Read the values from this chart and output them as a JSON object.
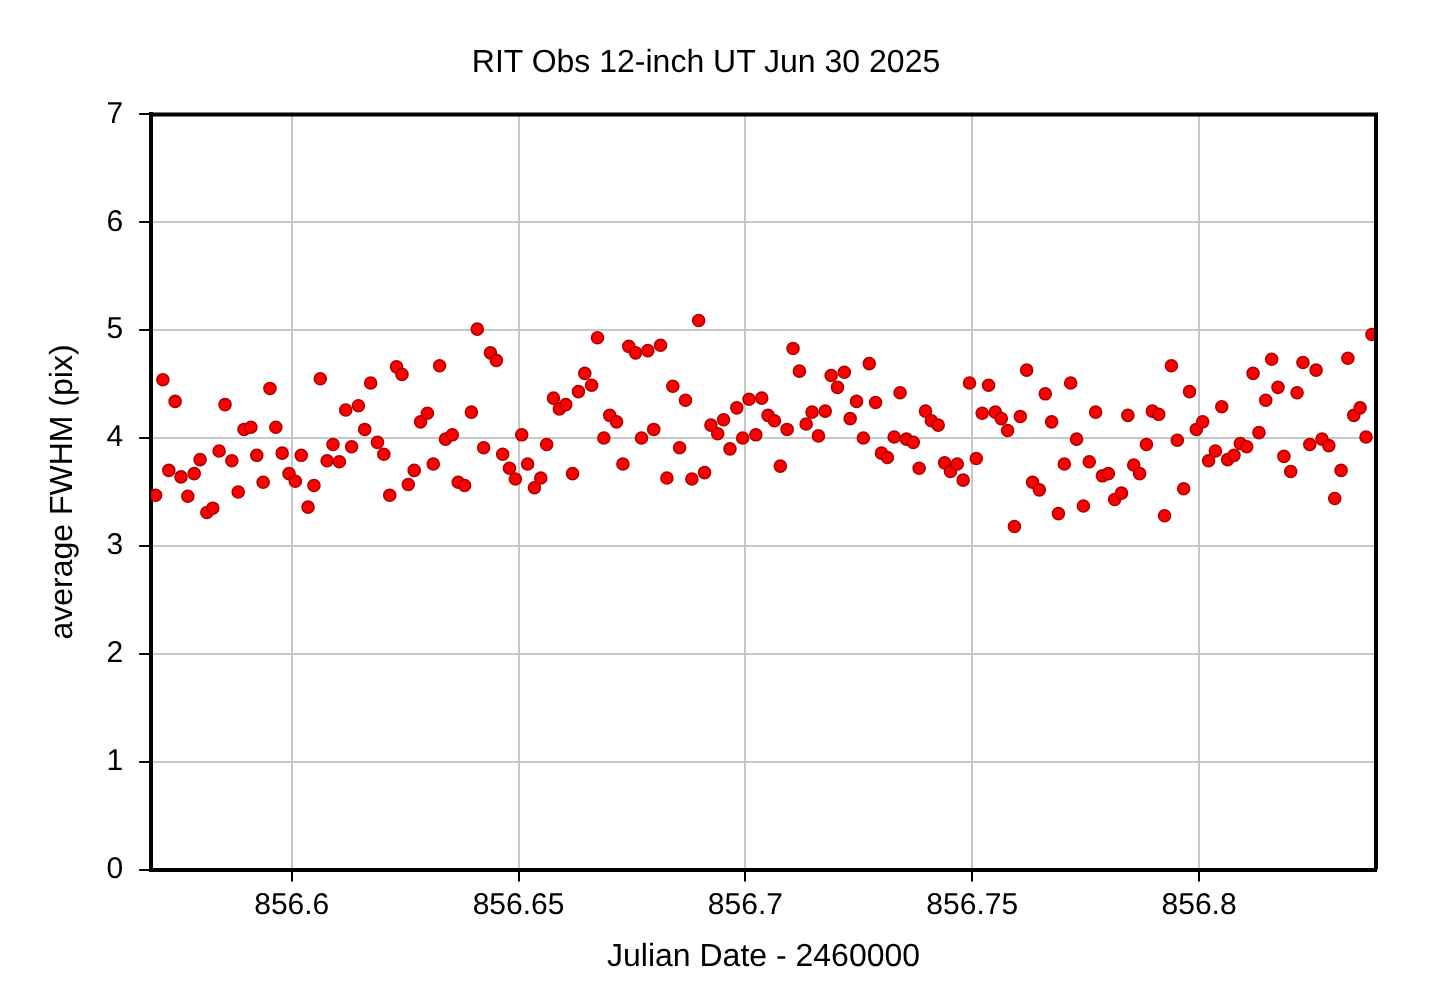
{
  "chart_data": {
    "type": "scatter",
    "title": "RIT Obs 12-inch UT Jun 30 2025",
    "xlabel": "Julian Date - 2460000",
    "ylabel": "average FWHM (pix)",
    "x": [
      856.57,
      856.5716,
      856.5729,
      856.5743,
      856.5756,
      856.5771,
      856.5785,
      856.5798,
      856.5813,
      856.5826,
      856.584,
      856.5853,
      856.5868,
      856.5882,
      856.5895,
      856.591,
      856.5923,
      856.5937,
      856.5952,
      856.5965,
      856.5979,
      856.5994,
      856.6008,
      856.6021,
      856.6036,
      856.6049,
      856.6063,
      856.6078,
      856.6091,
      856.6105,
      856.6119,
      856.6132,
      856.6147,
      856.6161,
      856.6174,
      856.6189,
      856.6203,
      856.6216,
      856.6231,
      856.6243,
      856.6257,
      856.627,
      856.6284,
      856.6299,
      856.6312,
      856.6326,
      856.6339,
      856.6354,
      856.6367,
      856.6381,
      856.6396,
      856.6409,
      856.6423,
      856.6438,
      856.6451,
      856.6465,
      856.648,
      856.6493,
      856.6507,
      856.652,
      856.6535,
      856.6549,
      856.6562,
      856.6577,
      856.659,
      856.6604,
      856.6619,
      856.6632,
      856.6646,
      856.6661,
      856.6674,
      856.6688,
      856.6701,
      856.6716,
      856.673,
      856.6743,
      856.6758,
      856.6771,
      856.6785,
      856.6798,
      856.6813,
      856.6827,
      856.684,
      856.6855,
      856.6868,
      856.6882,
      856.6897,
      856.691,
      856.6924,
      856.6939,
      856.6952,
      856.6966,
      856.6981,
      856.6994,
      856.7008,
      856.7023,
      856.7036,
      856.705,
      856.7064,
      856.7077,
      856.7092,
      856.7105,
      856.7119,
      856.7134,
      856.7147,
      856.7161,
      856.7176,
      856.7189,
      856.7203,
      856.7218,
      856.7231,
      856.7245,
      856.726,
      856.7273,
      856.7287,
      856.73,
      856.7313,
      856.7328,
      856.7341,
      856.7355,
      856.737,
      856.7383,
      856.7397,
      856.741,
      856.7425,
      856.7439,
      856.7452,
      856.7467,
      856.748,
      856.7494,
      856.7509,
      856.7522,
      856.7536,
      856.7551,
      856.7564,
      856.7578,
      856.7593,
      856.7606,
      856.762,
      856.7633,
      856.7648,
      856.7661,
      856.7675,
      856.769,
      856.7703,
      856.7717,
      856.773,
      856.7745,
      856.7758,
      856.7772,
      856.7787,
      856.78,
      856.7814,
      856.7829,
      856.7843,
      856.7856,
      856.7869,
      856.7884,
      856.7897,
      856.7911,
      856.7924,
      856.7939,
      856.7952,
      856.7966,
      856.7979,
      856.7994,
      856.8008,
      856.8021,
      856.8036,
      856.805,
      856.8063,
      856.8077,
      856.8091,
      856.8105,
      856.8119,
      856.8132,
      856.8147,
      856.816,
      856.8174,
      856.8187,
      856.8202,
      856.8216,
      856.8229,
      856.8244,
      856.8258,
      856.8271,
      856.8286,
      856.8299,
      856.8313,
      856.8328,
      856.8341,
      856.8355,
      856.8368,
      856.8381
    ],
    "values": [
      3.47,
      4.54,
      3.7,
      4.34,
      3.64,
      3.46,
      3.67,
      3.8,
      3.31,
      3.35,
      3.88,
      4.31,
      3.79,
      3.5,
      4.08,
      4.1,
      3.84,
      3.59,
      4.46,
      4.1,
      3.86,
      3.67,
      3.6,
      3.84,
      3.36,
      3.56,
      4.55,
      3.79,
      3.94,
      3.78,
      4.26,
      3.92,
      4.3,
      4.08,
      4.51,
      3.96,
      3.85,
      3.47,
      4.66,
      4.59,
      3.57,
      3.7,
      4.15,
      4.23,
      3.76,
      4.67,
      3.99,
      4.03,
      3.59,
      3.56,
      4.24,
      5.01,
      3.91,
      4.79,
      4.72,
      3.85,
      3.72,
      3.62,
      4.03,
      3.76,
      3.54,
      3.63,
      3.94,
      4.37,
      4.27,
      4.31,
      3.67,
      4.43,
      4.6,
      4.49,
      4.93,
      4.0,
      4.21,
      4.15,
      3.76,
      4.85,
      4.79,
      4.0,
      4.81,
      4.08,
      4.86,
      3.63,
      4.48,
      3.91,
      4.35,
      3.62,
      5.09,
      3.68,
      4.12,
      4.04,
      4.17,
      3.9,
      4.28,
      4.0,
      4.36,
      4.03,
      4.37,
      4.21,
      4.16,
      3.74,
      4.08,
      4.83,
      4.62,
      4.13,
      4.24,
      4.02,
      4.25,
      4.58,
      4.47,
      4.61,
      4.18,
      4.34,
      4.0,
      4.69,
      4.33,
      3.86,
      3.82,
      4.01,
      4.42,
      3.99,
      3.96,
      3.72,
      4.25,
      4.16,
      4.12,
      3.77,
      3.69,
      3.76,
      3.61,
      4.51,
      3.81,
      4.23,
      4.49,
      4.24,
      4.18,
      4.07,
      3.18,
      4.2,
      4.63,
      3.59,
      3.52,
      4.41,
      4.15,
      3.3,
      3.76,
      4.51,
      3.99,
      3.37,
      3.78,
      4.24,
      3.65,
      3.67,
      3.43,
      3.49,
      4.21,
      3.75,
      3.67,
      3.94,
      4.25,
      4.22,
      3.28,
      4.67,
      3.98,
      3.53,
      4.43,
      4.08,
      4.15,
      3.79,
      3.88,
      4.29,
      3.8,
      3.84,
      3.95,
      3.92,
      4.6,
      4.05,
      4.35,
      4.73,
      4.47,
      3.83,
      3.69,
      4.42,
      4.7,
      3.94,
      4.63,
      3.99,
      3.93,
      3.44,
      3.7,
      4.74,
      4.21,
      4.28,
      4.01,
      4.96
    ],
    "color": "#ff0000",
    "marker": "circle",
    "xlim": [
      856.569,
      856.839
    ],
    "xticks": [
      856.6,
      856.65,
      856.7,
      856.75,
      856.8
    ],
    "ylim": [
      0,
      7
    ],
    "yticks": [
      0,
      1,
      2,
      3,
      4,
      5,
      6,
      7
    ],
    "grid": true
  }
}
